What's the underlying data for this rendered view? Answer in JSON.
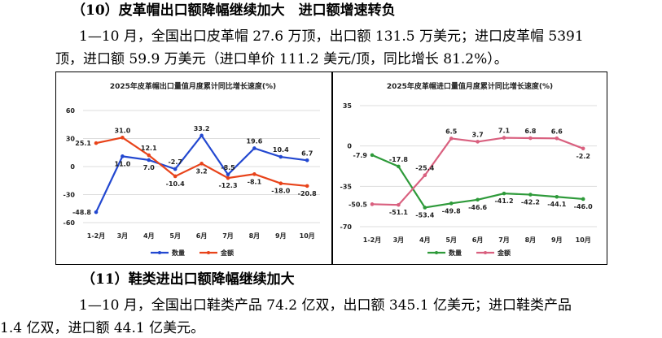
{
  "heading1": "（10）皮革帽出口额降幅继续加大　进口额增速转负",
  "para1_line1": "1—10 月，全国出口皮革帽 27.6 万顶，出口额 131.5 万美元；进口皮革帽 5391",
  "para1_line2": "顶，进口额 59.9 万美元（进口单价 111.2 美元/顶，同比增长 81.2%）。",
  "heading2": "（11）鞋类进出口额降幅继续加大",
  "para2_line1": "1—10 月，全国出口鞋类产品 74.2 亿双，出口额 345.1 亿美元；进口鞋类产品",
  "para2_line2": "1.4 亿双，进口额 44.1 亿美元。",
  "chart_data": [
    {
      "type": "line",
      "title": "2025年皮革帽出口量值月度累计同比增长速度(%)",
      "categories": [
        "1-2月",
        "3月",
        "4月",
        "5月",
        "6月",
        "7月",
        "8月",
        "9月",
        "10月"
      ],
      "ylim": [
        -60,
        60
      ],
      "yticks": [
        "60",
        "30",
        "0",
        "-30",
        "-60"
      ],
      "ytick_values": [
        60,
        30,
        0,
        -30,
        -60
      ],
      "legend_position": "bottom",
      "grid": true,
      "series": [
        {
          "name": "数量",
          "color": "#2348d0",
          "values": [
            -48.8,
            11.0,
            7.0,
            -2.7,
            33.2,
            -8.5,
            19.6,
            10.4,
            6.7
          ],
          "labels": [
            "-48.8",
            "11.0",
            "7.0",
            "-2.7",
            "33.2",
            "-8.5",
            "19.6",
            "10.4",
            "6.7"
          ]
        },
        {
          "name": "金额",
          "color": "#e8431a",
          "values": [
            25.1,
            31.0,
            12.1,
            -10.4,
            3.2,
            -12.3,
            -8.1,
            -18.0,
            -20.8
          ],
          "labels": [
            "25.1",
            "31.0",
            "12.1",
            "-10.4",
            "3.2",
            "-12.3",
            "-8.1",
            "-18.0",
            "-20.8"
          ]
        }
      ]
    },
    {
      "type": "line",
      "title": "2025年皮革帽进口量值月度累计同比增长速度(%)",
      "categories": [
        "1-2月",
        "3月",
        "4月",
        "5月",
        "6月",
        "7月",
        "8月",
        "9月",
        "10月"
      ],
      "ylim": [
        -70,
        35
      ],
      "yticks": [
        "35",
        "0",
        "-35",
        "-70"
      ],
      "ytick_values": [
        35,
        0,
        -35,
        -70
      ],
      "legend_position": "bottom",
      "grid": true,
      "series": [
        {
          "name": "数量",
          "color": "#2e9a3a",
          "values": [
            -7.9,
            -17.8,
            -53.4,
            -49.8,
            -46.6,
            -41.2,
            -42.2,
            -44.1,
            -46.0
          ],
          "labels": [
            "-7.9",
            "-17.8",
            "-53.4",
            "-49.8",
            "-46.6",
            "-41.2",
            "-42.2",
            "-44.1",
            "-46.0"
          ]
        },
        {
          "name": "金额",
          "color": "#d9607f",
          "values": [
            -50.5,
            -51.1,
            -25.4,
            6.5,
            3.7,
            7.1,
            6.8,
            6.6,
            -2.2
          ],
          "labels": [
            "-50.5",
            "-51.1",
            "-25.4",
            "6.5",
            "3.7",
            "7.1",
            "6.8",
            "6.6",
            "-2.2"
          ]
        }
      ]
    }
  ]
}
